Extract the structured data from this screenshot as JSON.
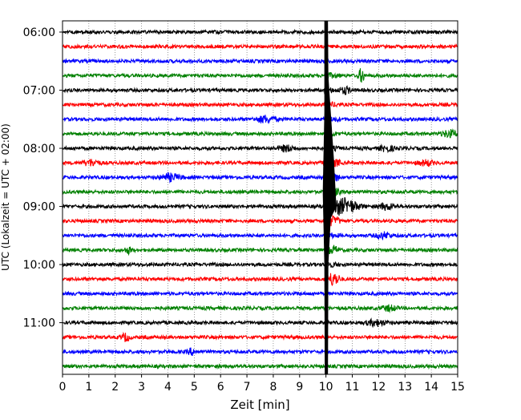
{
  "chart_data": {
    "type": "line",
    "title": "",
    "xlabel": "Zeit  [min]",
    "ylabel": "UTC (Lokalzeit = UTC + 02:00)",
    "xlim": [
      0,
      15
    ],
    "x_ticks": [
      0,
      1,
      2,
      3,
      4,
      5,
      6,
      7,
      8,
      9,
      10,
      11,
      12,
      13,
      14,
      15
    ],
    "y_tick_labels": [
      "06:00",
      "07:00",
      "08:00",
      "09:00",
      "10:00",
      "11:00"
    ],
    "grid": "x-dotted",
    "trace_colors": [
      "#000000",
      "#ff0000",
      "#0000ff",
      "#008000"
    ],
    "traces_per_hour": 4,
    "traces": [
      "06:00",
      "06:15",
      "06:30",
      "06:45",
      "07:00",
      "07:15",
      "07:30",
      "07:45",
      "08:00",
      "08:15",
      "08:30",
      "08:45",
      "09:00",
      "09:15",
      "09:30",
      "09:45",
      "10:00",
      "10:15",
      "10:30",
      "10:45",
      "11:00",
      "11:15",
      "11:30",
      "11:45"
    ],
    "event_minute": 10.0
  }
}
